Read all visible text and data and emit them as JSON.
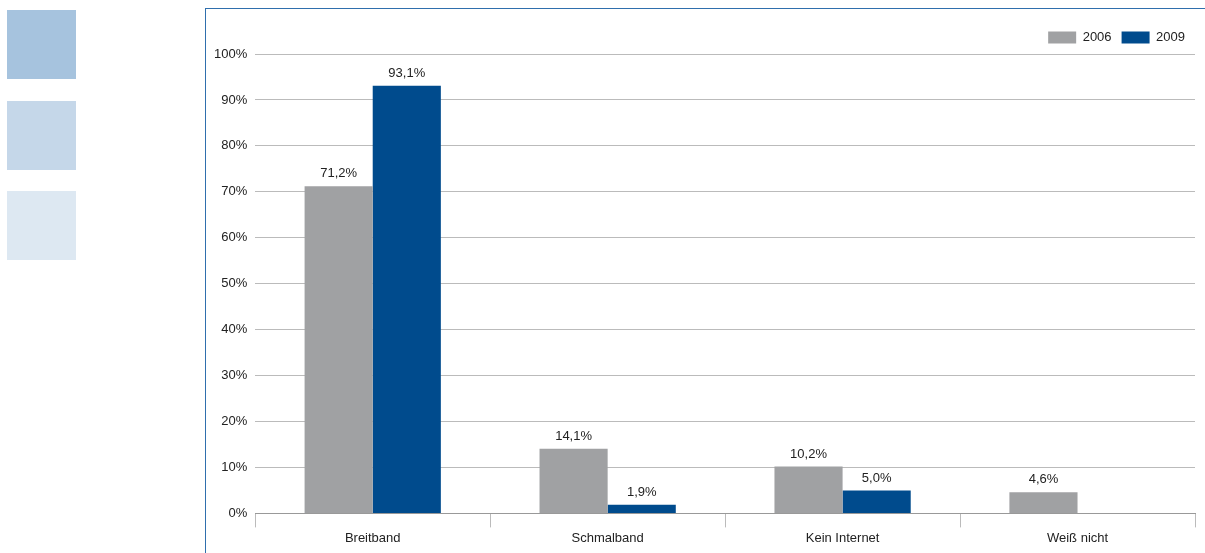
{
  "chart_data": {
    "type": "bar",
    "categories": [
      "Breitband",
      "Schmalband",
      "Kein Internet",
      "Weiß nicht"
    ],
    "series": [
      {
        "name": "2006",
        "color": "#a0a1a3",
        "values": [
          71.2,
          14.1,
          10.2,
          4.6
        ],
        "value_labels": [
          "71,2%",
          "14,1%",
          "10,2%",
          "4,6%"
        ]
      },
      {
        "name": "2009",
        "color": "#004b8d",
        "values": [
          93.1,
          1.9,
          5.0,
          null
        ],
        "value_labels": [
          "93,1%",
          "1,9%",
          "5,0%",
          null
        ]
      }
    ],
    "ylim": [
      0,
      100
    ],
    "yticks": [
      {
        "value": 0,
        "label": "0%"
      },
      {
        "value": 10,
        "label": "10%"
      },
      {
        "value": 20,
        "label": "20%"
      },
      {
        "value": 30,
        "label": "30%"
      },
      {
        "value": 40,
        "label": "40%"
      },
      {
        "value": 50,
        "label": "50%"
      },
      {
        "value": 60,
        "label": "60%"
      },
      {
        "value": 70,
        "label": "70%"
      },
      {
        "value": 80,
        "label": "80%"
      },
      {
        "value": 90,
        "label": "90%"
      },
      {
        "value": 100,
        "label": "100%"
      }
    ],
    "grid": "y",
    "legend": "top right"
  }
}
